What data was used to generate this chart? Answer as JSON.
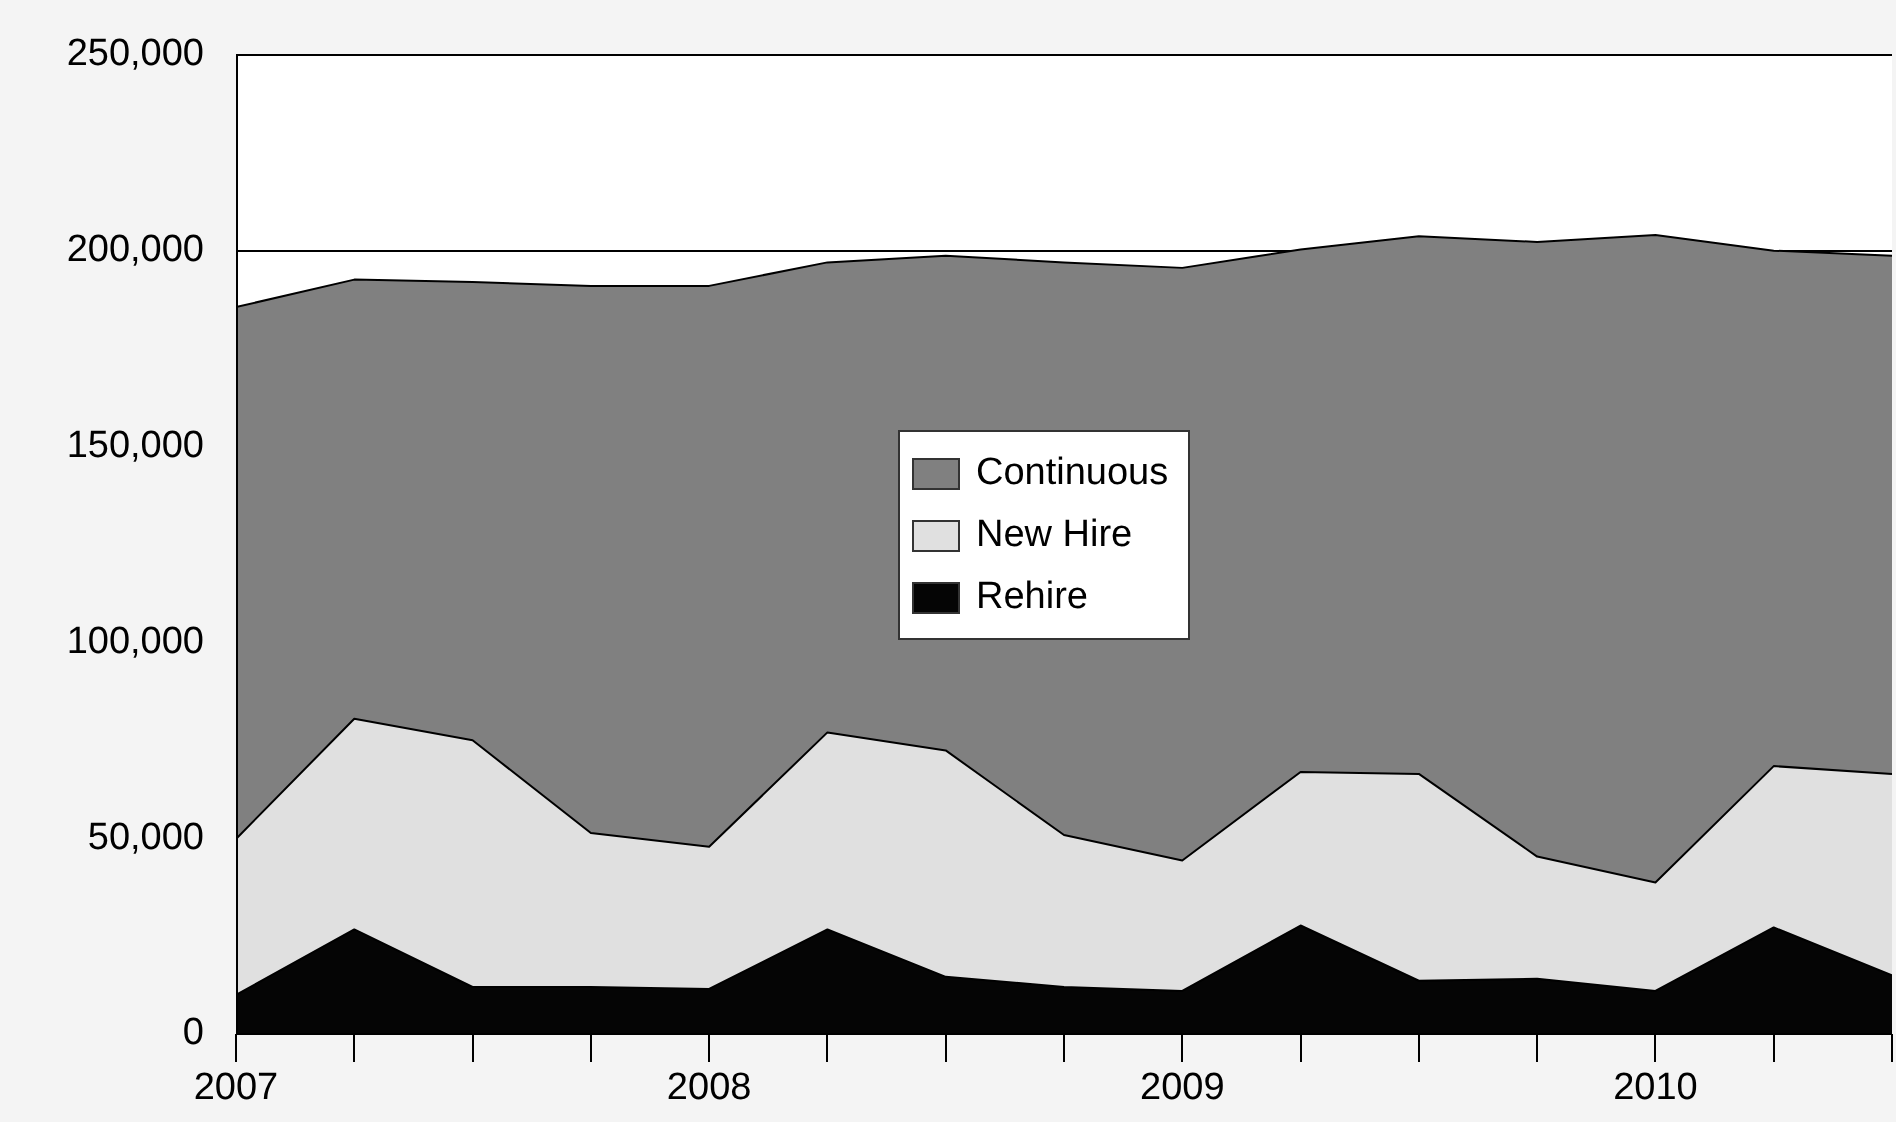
{
  "chart_data": {
    "type": "area",
    "stacked": true,
    "x": [
      2007,
      2007.25,
      2007.5,
      2007.75,
      2008,
      2008.25,
      2008.5,
      2008.75,
      2009,
      2009.25,
      2009.5,
      2009.75,
      2010,
      2010.25,
      2010.5
    ],
    "series": [
      {
        "name": "Rehire",
        "color": "#050505",
        "values": [
          10000,
          26700,
          12000,
          12000,
          11500,
          26700,
          14600,
          12000,
          11000,
          27700,
          13600,
          14100,
          11000,
          27200,
          15000
        ]
      },
      {
        "name": "New Hire",
        "color": "#e0e0e0",
        "values": [
          39800,
          53800,
          63000,
          39300,
          36300,
          50300,
          57800,
          38800,
          33300,
          39200,
          52800,
          31200,
          27700,
          41200,
          51400
        ]
      },
      {
        "name": "Continuous",
        "color": "#808080",
        "values": [
          135800,
          112100,
          117000,
          139700,
          143200,
          120000,
          126300,
          146200,
          151300,
          133400,
          137300,
          156900,
          165300,
          131600,
          132300
        ]
      }
    ],
    "xlim": [
      2007,
      2010.5
    ],
    "xticks": [
      2007,
      {
        "value": 2007.25,
        "label": null
      },
      {
        "value": 2007.5,
        "label": null
      },
      {
        "value": 2007.75,
        "label": null
      },
      2008,
      {
        "value": 2008.25,
        "label": null
      },
      {
        "value": 2008.5,
        "label": null
      },
      {
        "value": 2008.75,
        "label": null
      },
      2009,
      {
        "value": 2009.25,
        "label": null
      },
      {
        "value": 2009.5,
        "label": null
      },
      {
        "value": 2009.75,
        "label": null
      },
      2010,
      {
        "value": 2010.25,
        "label": null
      },
      {
        "value": 2010.5,
        "label": null
      }
    ],
    "ylim": [
      0,
      250000
    ],
    "yticks": [
      {
        "value": 0,
        "label": "0"
      },
      {
        "value": 50000,
        "label": "50,000"
      },
      {
        "value": 100000,
        "label": "100,000"
      },
      {
        "value": 150000,
        "label": "150,000"
      },
      {
        "value": 200000,
        "label": "200,000"
      },
      {
        "value": 250000,
        "label": "250,000"
      }
    ],
    "grid": "y",
    "legend": "center",
    "marker": "none"
  }
}
